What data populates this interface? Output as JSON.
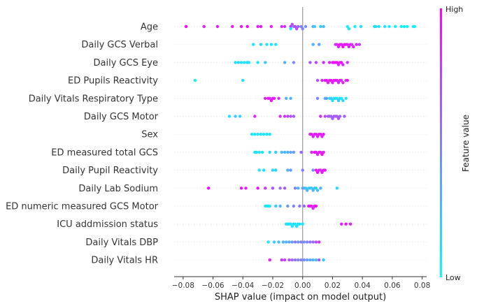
{
  "chart_data": {
    "type": "scatter",
    "xlabel": "SHAP value (impact on model output)",
    "xlim": [
      -0.086,
      0.083
    ],
    "xticks": [
      "−0.08",
      "−0.06",
      "−0.04",
      "−0.02",
      "0.00",
      "0.02",
      "0.04",
      "0.06",
      "0.08"
    ],
    "xtick_values": [
      -0.08,
      -0.06,
      -0.04,
      -0.02,
      0.0,
      0.02,
      0.04,
      0.06,
      0.08
    ],
    "colorbar": {
      "title": "Feature value",
      "high_label": "High",
      "low_label": "Low",
      "high_color": "#ff00ff",
      "low_color": "#00ffff"
    },
    "features": [
      {
        "name": "Age",
        "points": [
          [
            -0.078,
            1
          ],
          [
            -0.066,
            0.9
          ],
          [
            -0.057,
            0.9
          ],
          [
            -0.047,
            0.95
          ],
          [
            -0.041,
            0.95
          ],
          [
            -0.037,
            1
          ],
          [
            -0.03,
            0.9
          ],
          [
            -0.028,
            0.95
          ],
          [
            -0.021,
            0.9
          ],
          [
            -0.014,
            0.85
          ],
          [
            -0.012,
            0.8
          ],
          [
            -0.008,
            0.8
          ],
          [
            -0.008,
            0.1
          ],
          [
            -0.007,
            0.7
          ],
          [
            -0.006,
            0.4
          ],
          [
            -0.005,
            0.75
          ],
          [
            -0.004,
            0.7
          ],
          [
            -0.003,
            0.6
          ],
          [
            -0.001,
            0.5
          ],
          [
            0.0,
            0.5
          ],
          [
            0.002,
            0.45
          ],
          [
            0.007,
            0.3
          ],
          [
            0.008,
            0.2
          ],
          [
            0.012,
            0.2
          ],
          [
            0.014,
            0.25
          ],
          [
            0.03,
            0.05
          ],
          [
            0.031,
            0.1
          ],
          [
            0.035,
            0.05
          ],
          [
            0.039,
            0.1
          ],
          [
            0.048,
            0.1
          ],
          [
            0.049,
            0.15
          ],
          [
            0.051,
            0.1
          ],
          [
            0.055,
            0.1
          ],
          [
            0.058,
            0.05
          ],
          [
            0.062,
            0.05
          ],
          [
            0.066,
            0.05
          ],
          [
            0.068,
            0.1
          ],
          [
            0.07,
            0.05
          ],
          [
            0.074,
            0.05
          ],
          [
            0.075,
            0.05
          ]
        ]
      },
      {
        "name": "Daily GCS Verbal",
        "points": [
          [
            -0.033,
            0.1
          ],
          [
            -0.028,
            0.15
          ],
          [
            -0.024,
            0.1
          ],
          [
            -0.021,
            0.1
          ],
          [
            -0.018,
            0.1
          ],
          [
            0.007,
            0.3
          ],
          [
            0.011,
            0.35
          ],
          [
            0.022,
            0.8
          ],
          [
            0.023,
            0.85
          ],
          [
            0.024,
            0.9
          ],
          [
            0.025,
            0.95
          ],
          [
            0.026,
            0.9
          ],
          [
            0.027,
            0.95
          ],
          [
            0.028,
            0.9
          ],
          [
            0.029,
            0.95
          ],
          [
            0.03,
            0.85
          ],
          [
            0.031,
            0.9
          ],
          [
            0.032,
            0.95
          ],
          [
            0.033,
            0.8
          ],
          [
            0.034,
            0.9
          ],
          [
            0.036,
            0.9
          ],
          [
            0.038,
            0.75
          ]
        ]
      },
      {
        "name": "Daily GCS Eye",
        "points": [
          [
            -0.045,
            0.1
          ],
          [
            -0.043,
            0.15
          ],
          [
            -0.041,
            0.1
          ],
          [
            -0.039,
            0.1
          ],
          [
            -0.037,
            0.15
          ],
          [
            -0.036,
            0.1
          ],
          [
            -0.03,
            0.1
          ],
          [
            -0.025,
            0.2
          ],
          [
            -0.012,
            0.3
          ],
          [
            -0.006,
            0.45
          ],
          [
            0.005,
            0.7
          ],
          [
            0.009,
            0.75
          ],
          [
            0.014,
            0.85
          ],
          [
            0.018,
            0.9
          ],
          [
            0.02,
            0.9
          ],
          [
            0.021,
            0.95
          ],
          [
            0.022,
            0.9
          ],
          [
            0.023,
            0.95
          ],
          [
            0.024,
            0.85
          ],
          [
            0.025,
            0.9
          ],
          [
            0.026,
            0.95
          ],
          [
            0.027,
            0.85
          ],
          [
            0.03,
            0.8
          ]
        ]
      },
      {
        "name": "ED Pupils Reactivity",
        "points": [
          [
            -0.072,
            0.05
          ],
          [
            -0.04,
            0.1
          ],
          [
            0.01,
            0.7
          ],
          [
            0.013,
            0.85
          ],
          [
            0.015,
            0.9
          ],
          [
            0.016,
            0.95
          ],
          [
            0.017,
            0.9
          ],
          [
            0.018,
            0.85
          ],
          [
            0.019,
            0.95
          ],
          [
            0.02,
            0.9
          ],
          [
            0.021,
            0.85
          ],
          [
            0.022,
            0.95
          ],
          [
            0.023,
            0.9
          ],
          [
            0.024,
            0.85
          ],
          [
            0.025,
            0.9
          ],
          [
            0.026,
            0.8
          ],
          [
            0.027,
            0.9
          ],
          [
            0.029,
            0.85
          ],
          [
            0.03,
            0.9
          ]
        ]
      },
      {
        "name": "Daily Vitals Respiratory Type",
        "points": [
          [
            -0.025,
            0.9
          ],
          [
            -0.023,
            0.9
          ],
          [
            -0.022,
            0.85
          ],
          [
            -0.021,
            0.95
          ],
          [
            -0.02,
            0.9
          ],
          [
            -0.019,
            0.9
          ],
          [
            -0.016,
            0.85
          ],
          [
            -0.011,
            0.3
          ],
          [
            -0.008,
            0.3
          ],
          [
            0.01,
            0.5
          ],
          [
            0.015,
            0.3
          ],
          [
            0.016,
            0.4
          ],
          [
            0.018,
            0.1
          ],
          [
            0.019,
            0.2
          ],
          [
            0.02,
            0.15
          ],
          [
            0.021,
            0.1
          ],
          [
            0.022,
            0.15
          ],
          [
            0.023,
            0.1
          ],
          [
            0.024,
            0.2
          ],
          [
            0.025,
            0.15
          ],
          [
            0.026,
            0.1
          ],
          [
            0.027,
            0.15
          ],
          [
            0.029,
            0.1
          ]
        ]
      },
      {
        "name": "Daily GCS Motor",
        "points": [
          [
            -0.049,
            0.1
          ],
          [
            -0.045,
            0.2
          ],
          [
            -0.042,
            0.15
          ],
          [
            -0.032,
            0.9
          ],
          [
            -0.015,
            0.85
          ],
          [
            -0.012,
            0.8
          ],
          [
            -0.01,
            0.75
          ],
          [
            -0.008,
            0.7
          ],
          [
            -0.006,
            0.65
          ],
          [
            0.012,
            0.85
          ],
          [
            0.015,
            0.7
          ],
          [
            0.017,
            0.65
          ],
          [
            0.018,
            0.7
          ],
          [
            0.019,
            0.6
          ],
          [
            0.02,
            0.65
          ],
          [
            0.021,
            0.7
          ],
          [
            0.022,
            0.6
          ],
          [
            0.023,
            0.65
          ],
          [
            0.024,
            0.7
          ],
          [
            0.025,
            0.6
          ],
          [
            0.028,
            0.65
          ]
        ]
      },
      {
        "name": "Sex",
        "points": [
          [
            -0.034,
            0.1
          ],
          [
            -0.032,
            0.1
          ],
          [
            -0.03,
            0.1
          ],
          [
            -0.028,
            0.1
          ],
          [
            -0.026,
            0.1
          ],
          [
            -0.024,
            0.1
          ],
          [
            -0.022,
            0.1
          ],
          [
            0.005,
            0.9
          ],
          [
            0.006,
            0.9
          ],
          [
            0.007,
            0.9
          ],
          [
            0.008,
            0.9
          ],
          [
            0.009,
            0.9
          ],
          [
            0.01,
            0.9
          ],
          [
            0.011,
            0.9
          ],
          [
            0.012,
            0.9
          ],
          [
            0.013,
            0.9
          ],
          [
            0.014,
            0.9
          ]
        ]
      },
      {
        "name": "ED measured total GCS",
        "points": [
          [
            -0.032,
            0.1
          ],
          [
            -0.031,
            0.15
          ],
          [
            -0.029,
            0.1
          ],
          [
            -0.027,
            0.1
          ],
          [
            -0.022,
            0.15
          ],
          [
            -0.018,
            0.2
          ],
          [
            -0.014,
            0.25
          ],
          [
            -0.012,
            0.3
          ],
          [
            -0.01,
            0.3
          ],
          [
            -0.008,
            0.35
          ],
          [
            -0.006,
            0.4
          ],
          [
            -0.001,
            0.6
          ],
          [
            0.006,
            0.9
          ],
          [
            0.008,
            0.95
          ],
          [
            0.009,
            0.9
          ],
          [
            0.01,
            0.85
          ],
          [
            0.011,
            0.9
          ],
          [
            0.012,
            0.9
          ],
          [
            0.013,
            0.95
          ],
          [
            0.014,
            0.9
          ]
        ]
      },
      {
        "name": "Daily Pupil Reactivity",
        "points": [
          [
            -0.029,
            0.1
          ],
          [
            -0.026,
            0.1
          ],
          [
            -0.02,
            0.15
          ],
          [
            -0.018,
            0.2
          ],
          [
            -0.01,
            0.3
          ],
          [
            -0.008,
            0.4
          ],
          [
            0.0,
            0.5
          ],
          [
            0.007,
            0.45
          ],
          [
            0.009,
            0.9
          ],
          [
            0.01,
            0.95
          ],
          [
            0.011,
            0.9
          ],
          [
            0.012,
            0.85
          ],
          [
            0.013,
            0.9
          ],
          [
            0.014,
            0.95
          ],
          [
            0.015,
            0.9
          ]
        ]
      },
      {
        "name": "Daily Lab Sodium",
        "points": [
          [
            -0.063,
            1
          ],
          [
            -0.041,
            0.95
          ],
          [
            -0.038,
            0.9
          ],
          [
            -0.03,
            0.95
          ],
          [
            -0.025,
            0.8
          ],
          [
            -0.02,
            0.7
          ],
          [
            -0.015,
            0.6
          ],
          [
            -0.012,
            0.65
          ],
          [
            -0.005,
            0.5
          ],
          [
            -0.003,
            0.3
          ],
          [
            0.0,
            0.4
          ],
          [
            0.001,
            0.3
          ],
          [
            0.002,
            0.25
          ],
          [
            0.003,
            0.3
          ],
          [
            0.004,
            0.2
          ],
          [
            0.005,
            0.25
          ],
          [
            0.006,
            0.2
          ],
          [
            0.007,
            0.3
          ],
          [
            0.008,
            0.25
          ],
          [
            0.009,
            0.2
          ],
          [
            0.01,
            0.25
          ],
          [
            0.012,
            0.3
          ],
          [
            0.023,
            0.15
          ]
        ]
      },
      {
        "name": "ED numeric measured GCS Motor",
        "points": [
          [
            -0.025,
            0.1
          ],
          [
            -0.024,
            0.15
          ],
          [
            -0.023,
            0.1
          ],
          [
            -0.022,
            0.1
          ],
          [
            -0.018,
            0.2
          ],
          [
            -0.015,
            0.3
          ],
          [
            -0.01,
            0.4
          ],
          [
            -0.006,
            0.5
          ],
          [
            -0.002,
            0.55
          ],
          [
            0.001,
            0.6
          ],
          [
            0.004,
            0.9
          ],
          [
            0.005,
            0.95
          ],
          [
            0.006,
            0.9
          ],
          [
            0.007,
            0.85
          ],
          [
            0.008,
            0.9
          ],
          [
            0.009,
            0.95
          ]
        ]
      },
      {
        "name": "ICU addmission status",
        "points": [
          [
            -0.011,
            0.1
          ],
          [
            -0.01,
            0.1
          ],
          [
            -0.009,
            0.15
          ],
          [
            -0.008,
            0.1
          ],
          [
            -0.007,
            0.1
          ],
          [
            -0.006,
            0.15
          ],
          [
            -0.005,
            0.1
          ],
          [
            -0.004,
            0.1
          ],
          [
            -0.003,
            0.15
          ],
          [
            -0.002,
            0.1
          ],
          [
            0.0,
            0.1
          ],
          [
            0.026,
            0.9
          ],
          [
            0.029,
            0.95
          ],
          [
            0.032,
            0.9
          ]
        ]
      },
      {
        "name": "Daily Vitals DBP",
        "points": [
          [
            -0.023,
            0.1
          ],
          [
            -0.019,
            0.2
          ],
          [
            -0.016,
            0.25
          ],
          [
            -0.013,
            0.3
          ],
          [
            -0.011,
            0.3
          ],
          [
            -0.009,
            0.35
          ],
          [
            -0.007,
            0.4
          ],
          [
            -0.005,
            0.5
          ],
          [
            -0.003,
            0.45
          ],
          [
            -0.001,
            0.5
          ],
          [
            0.001,
            0.45
          ],
          [
            0.003,
            0.5
          ],
          [
            0.005,
            0.55
          ],
          [
            0.007,
            0.6
          ],
          [
            0.009,
            0.7
          ],
          [
            0.011,
            0.8
          ]
        ]
      },
      {
        "name": "Daily Vitals HR",
        "points": [
          [
            -0.022,
            0.9
          ],
          [
            -0.014,
            0.8
          ],
          [
            -0.012,
            0.75
          ],
          [
            -0.009,
            0.7
          ],
          [
            -0.007,
            0.6
          ],
          [
            -0.005,
            0.55
          ],
          [
            -0.003,
            0.5
          ],
          [
            -0.001,
            0.5
          ],
          [
            0.001,
            0.45
          ],
          [
            0.003,
            0.4
          ],
          [
            0.005,
            0.35
          ],
          [
            0.007,
            0.3
          ],
          [
            0.009,
            0.3
          ],
          [
            0.011,
            0.65
          ],
          [
            0.014,
            0.2
          ]
        ]
      }
    ]
  }
}
